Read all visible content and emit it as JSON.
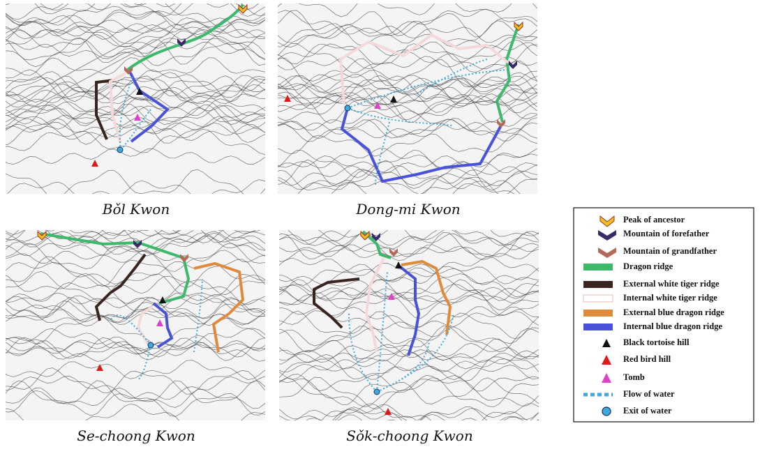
{
  "panels": [
    {
      "caption": "Bǒl Kwon"
    },
    {
      "caption": "Dong-mi Kwon"
    },
    {
      "caption": "Se-choong Kwon"
    },
    {
      "caption": "Sǒk-choong Kwon"
    }
  ],
  "legend": {
    "items": [
      {
        "label": "Peak of ancestor"
      },
      {
        "label": "Mountain of forefather"
      },
      {
        "label": "Mountain of grandfather"
      },
      {
        "label": "Dragon ridge"
      },
      {
        "label": "External white tiger ridge"
      },
      {
        "label": "Internal white tiger ridge"
      },
      {
        "label": "External blue dragon ridge"
      },
      {
        "label": "Internal blue dragon ridge"
      },
      {
        "label": "Black tortoise hill"
      },
      {
        "label": "Red bird hill"
      },
      {
        "label": "Tomb"
      },
      {
        "label": "Flow of water"
      },
      {
        "label": "Exit of water"
      }
    ]
  }
}
